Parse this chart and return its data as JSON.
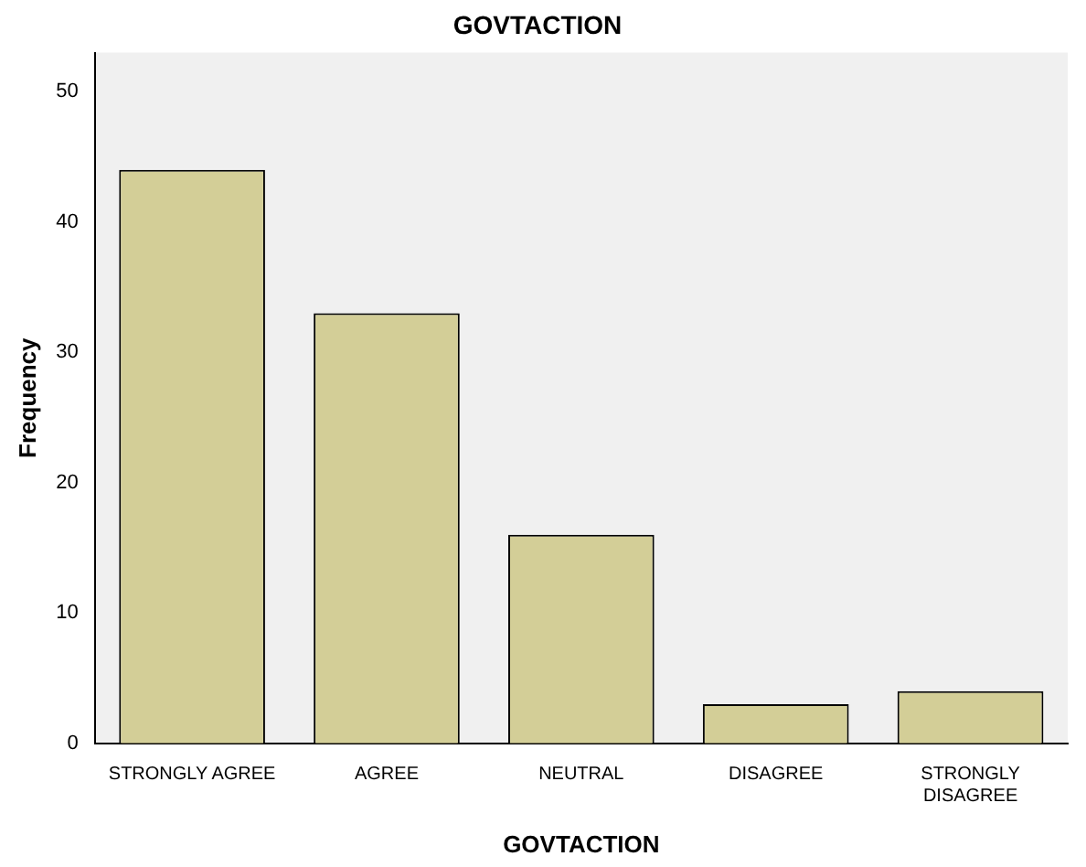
{
  "chart_data": {
    "type": "bar",
    "title": "GOVTACTION",
    "xlabel": "GOVTACTION",
    "ylabel": "Frequency",
    "categories": [
      "STRONGLY AGREE",
      "AGREE",
      "NEUTRAL",
      "DISAGREE",
      "STRONGLY DISAGREE"
    ],
    "values": [
      44,
      33,
      16,
      3,
      4
    ],
    "color": "#d3ce97",
    "ylim": [
      0,
      53
    ],
    "yticks": [
      0,
      10,
      20,
      30,
      40,
      50
    ],
    "grid": false,
    "legend": false
  }
}
